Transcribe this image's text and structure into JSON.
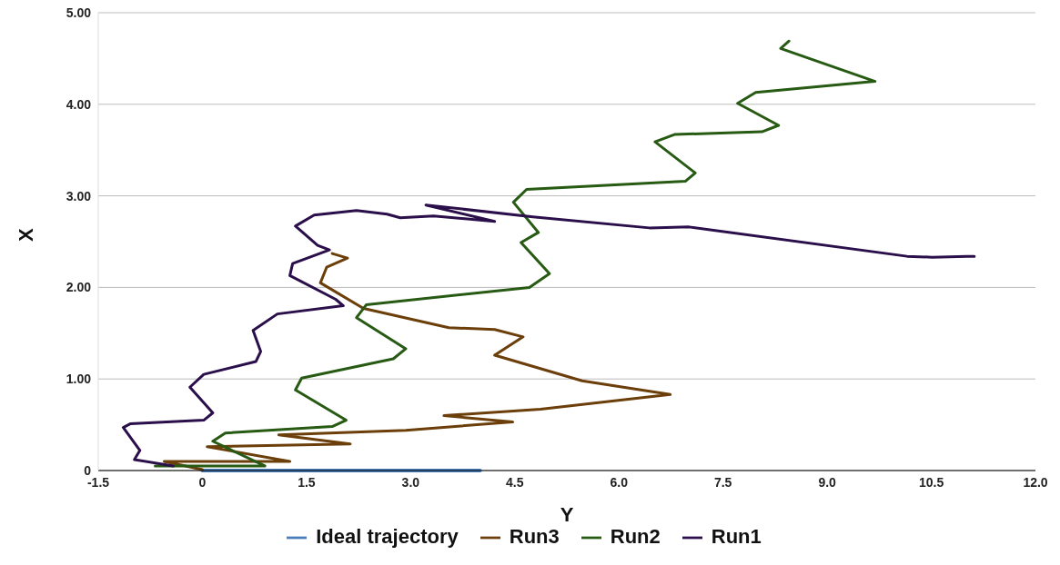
{
  "chart_data": {
    "type": "line",
    "xlabel": "Y",
    "ylabel": "X",
    "xlim": [
      -1.5,
      12
    ],
    "xticks": [
      -1.5,
      0,
      1.5,
      {
        "value": 3,
        "label": "3.0"
      },
      4.5,
      {
        "value": 6,
        "label": "6.0"
      },
      7.5,
      {
        "value": 9,
        "label": "9.0"
      },
      10.5,
      {
        "value": 12,
        "label": "12.0"
      }
    ],
    "ylim": [
      0,
      5
    ],
    "yticks": [
      0,
      {
        "value": 1,
        "label": "1.00"
      },
      {
        "value": 2,
        "label": "2.00"
      },
      {
        "value": 3,
        "label": "3.00"
      },
      {
        "value": 4,
        "label": "4.00"
      },
      {
        "value": 5,
        "label": "5.00"
      }
    ],
    "grid": "y",
    "legend": "bottom",
    "marker": "none",
    "line_style": "solid",
    "series": [
      {
        "name": "Ideal trajectory",
        "color": "#4a7ebb",
        "x": [
          0,
          4
        ],
        "values": [
          0,
          0
        ]
      },
      {
        "name": "Run3",
        "color": "#6b3e0a",
        "x": [
          0,
          -0.55,
          1.26,
          0.07,
          2.13,
          1.1,
          2.93,
          4.47,
          3.48,
          4.87,
          6.74,
          5.47,
          4.21,
          4.62,
          4.21,
          3.55,
          2.32,
          1.7,
          1.79,
          2.09,
          1.87
        ],
        "values": [
          0.01,
          0.1,
          0.1,
          0.26,
          0.29,
          0.39,
          0.44,
          0.53,
          0.6,
          0.67,
          0.83,
          0.98,
          1.26,
          1.46,
          1.54,
          1.56,
          1.77,
          2.05,
          2.22,
          2.32,
          2.37
        ]
      },
      {
        "name": "Run2",
        "color": "#275a13",
        "x": [
          -0.68,
          0.9,
          0.15,
          0.33,
          1.87,
          2.07,
          1.34,
          1.43,
          2.75,
          2.93,
          2.22,
          2.36,
          4.71,
          5,
          4.59,
          4.84,
          4.48,
          4.67,
          6.96,
          7.1,
          6.52,
          6.8,
          8.06,
          8.3,
          7.71,
          7.97,
          9.69,
          8.33,
          8.45
        ],
        "values": [
          0.05,
          0.05,
          0.32,
          0.41,
          0.48,
          0.55,
          0.88,
          1.01,
          1.22,
          1.33,
          1.67,
          1.81,
          2,
          2.15,
          2.49,
          2.6,
          2.93,
          3.07,
          3.16,
          3.25,
          3.59,
          3.67,
          3.7,
          3.77,
          4.01,
          4.13,
          4.25,
          4.61,
          4.69
        ]
      },
      {
        "name": "Run1",
        "color": "#2a0f4a",
        "x": [
          -0.42,
          -0.98,
          -0.9,
          -1.14,
          -1.04,
          0.02,
          0.15,
          -0.18,
          0.02,
          0.77,
          0.84,
          0.73,
          1.08,
          2.03,
          1.92,
          1.26,
          1.3,
          1.83,
          1.66,
          1.34,
          1.61,
          2.22,
          2.66,
          2.85,
          3.33,
          4.21,
          3.22,
          4.76,
          6.44,
          7.01,
          10.15,
          10.51,
          11.01,
          11.12
        ],
        "values": [
          0.05,
          0.12,
          0.22,
          0.47,
          0.51,
          0.55,
          0.63,
          0.91,
          1.05,
          1.19,
          1.3,
          1.53,
          1.71,
          1.8,
          1.87,
          2.13,
          2.26,
          2.41,
          2.46,
          2.67,
          2.79,
          2.84,
          2.8,
          2.76,
          2.78,
          2.72,
          2.9,
          2.77,
          2.65,
          2.66,
          2.34,
          2.33,
          2.34,
          2.34
        ]
      }
    ]
  }
}
